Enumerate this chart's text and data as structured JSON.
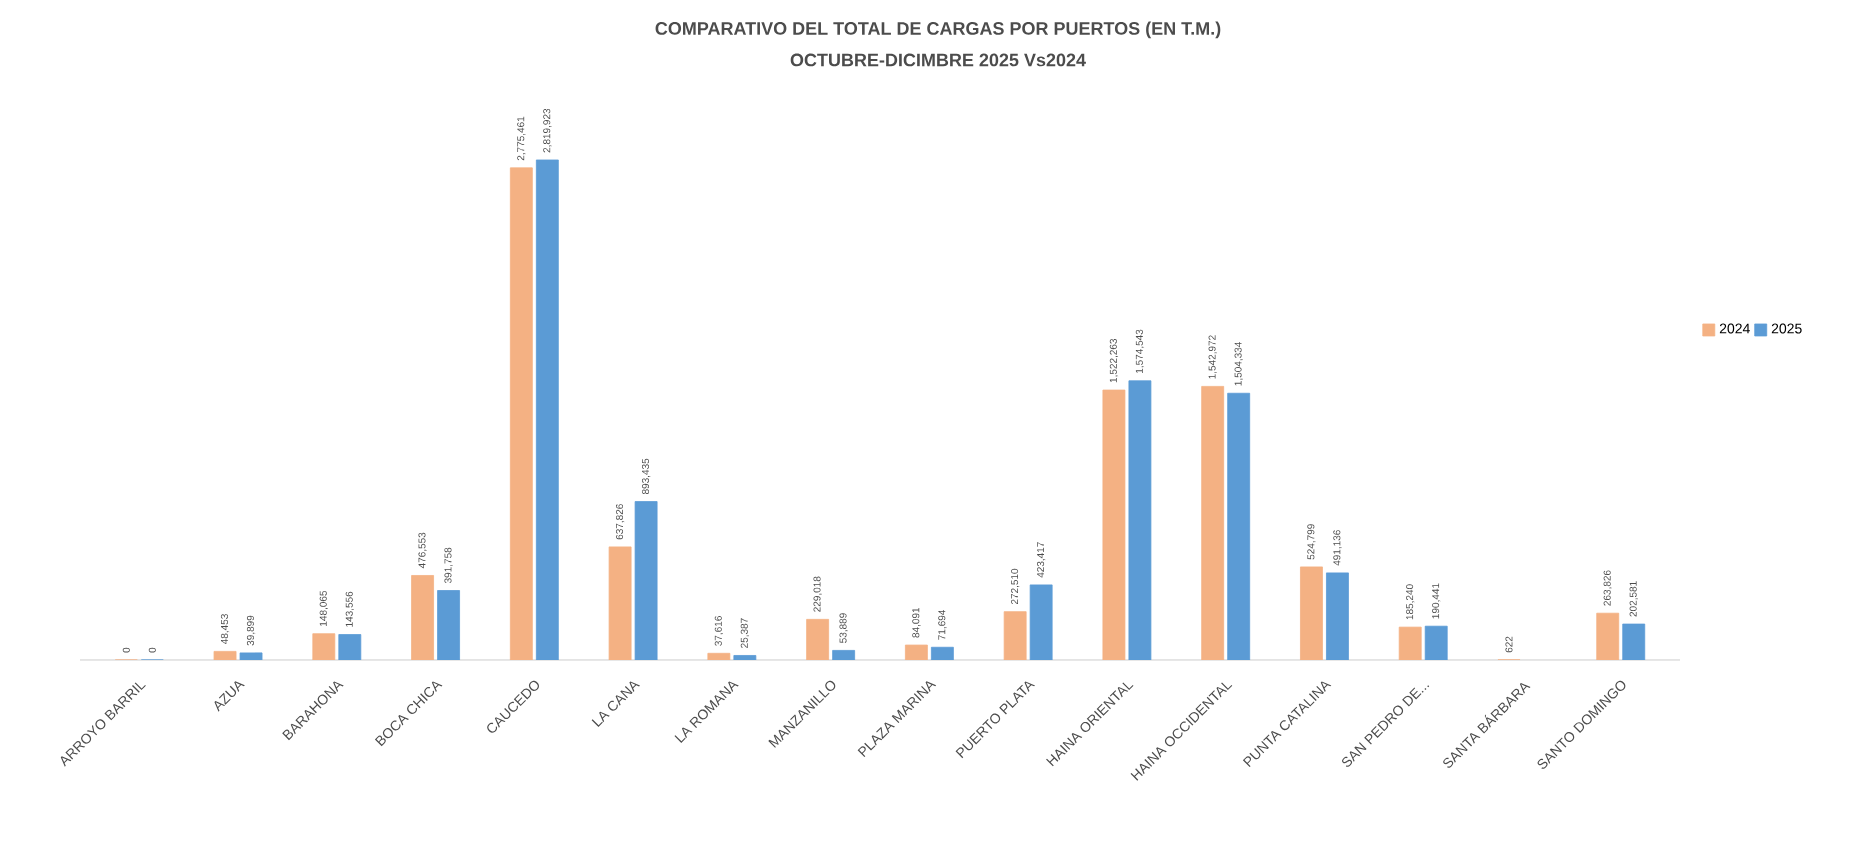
{
  "chart_data": {
    "type": "bar",
    "title": "COMPARATIVO  DEL TOTAL  DE CARGAS  POR PUERTOS (EN T.M.)",
    "subtitle": "OCTUBRE-DICIMBRE 2025 Vs2024",
    "categories": [
      "ARROYO BARRIL",
      "AZUA",
      "BARAHONA",
      "BOCA CHICA",
      "CAUCEDO",
      "LA CANA",
      "LA ROMANA",
      "MANZANILLO",
      "PLAZA MARINA",
      "PUERTO PLATA",
      "HAINA ORIENTAL",
      "HAINA OCCIDENTAL",
      "PUNTA CATALINA",
      "SAN PEDRO DE...",
      "SANTA BÁRBARA",
      "SANTO DOMINGO"
    ],
    "series": [
      {
        "name": "2024",
        "color": "#f4b183",
        "values": [
          0,
          48453,
          148065,
          476553,
          2775461,
          637826,
          37616,
          229018,
          84091,
          272510,
          1522263,
          1542972,
          524799,
          185240,
          622,
          263826
        ],
        "value_labels": [
          "0",
          "48,453",
          "148,065",
          "476,553",
          "2,775,461",
          "637,826",
          "37,616",
          "229,018",
          "84,091",
          "272,510",
          "1,522,263",
          "1,542,972",
          "524,799",
          "185,240",
          "622",
          "263,826"
        ]
      },
      {
        "name": "2025",
        "color": "#5b9bd5",
        "values": [
          0,
          39899,
          143556,
          391758,
          2819923,
          893435,
          25387,
          53889,
          71694,
          423417,
          1574543,
          1504334,
          491136,
          190441,
          null,
          202581
        ],
        "value_labels": [
          "0",
          "39,899",
          "143,556",
          "391,758",
          "2,819,923",
          "893,435",
          "25,387",
          "53,889",
          "71,694",
          "423,417",
          "1,574,543",
          "1,504,334",
          "491,136",
          "190,441",
          null,
          "202,581"
        ]
      }
    ],
    "legend": "right",
    "tick_labels": "x",
    "grid": false
  }
}
